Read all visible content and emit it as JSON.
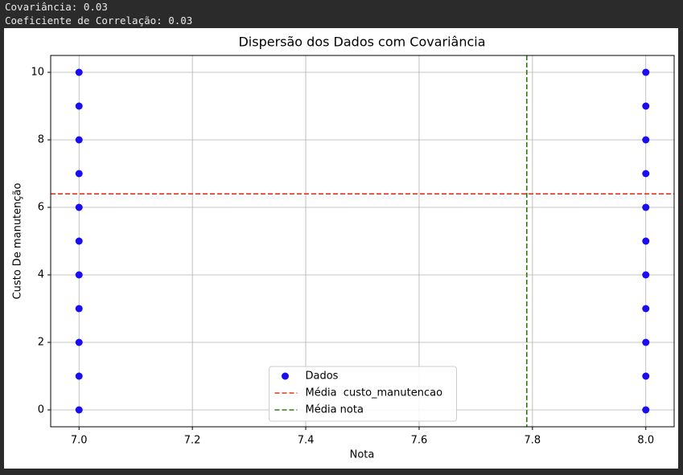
{
  "output_lines": [
    "Covariância: 0.03",
    "Coeficiente de Correlação: 0.03"
  ],
  "chart_data": {
    "type": "scatter",
    "title": "Dispersão dos Dados com Covariância",
    "x_label": "Nota",
    "y_label": "Custo De manutenção",
    "series": [
      {
        "name": "Dados",
        "color": "#1a0df0",
        "x": [
          7,
          7,
          7,
          7,
          7,
          7,
          7,
          7,
          7,
          7,
          7,
          8,
          8,
          8,
          8,
          8,
          8,
          8,
          8,
          8,
          8,
          8
        ],
        "values": [
          0,
          1,
          2,
          3,
          4,
          5,
          6,
          7,
          8,
          9,
          10,
          0,
          1,
          2,
          3,
          4,
          5,
          6,
          7,
          8,
          9,
          10
        ]
      }
    ],
    "reference_lines": [
      {
        "name": "Média  custo_manutencao",
        "color": "#e8341c",
        "axis": "y",
        "value": 6.4
      },
      {
        "name": "Média nota",
        "color": "#2e7d0f",
        "axis": "x",
        "value": 7.79
      }
    ],
    "xlim": [
      6.95,
      8.05
    ],
    "xticks": [
      {
        "value": 7,
        "label": "7.0"
      },
      7.2,
      7.4,
      7.6,
      7.8,
      {
        "value": 8,
        "label": "8.0"
      }
    ],
    "ylim": [
      -0.5,
      10.5
    ],
    "yticks": [
      0,
      2,
      4,
      6,
      8,
      10
    ],
    "grid": true,
    "legend": "lower center"
  }
}
